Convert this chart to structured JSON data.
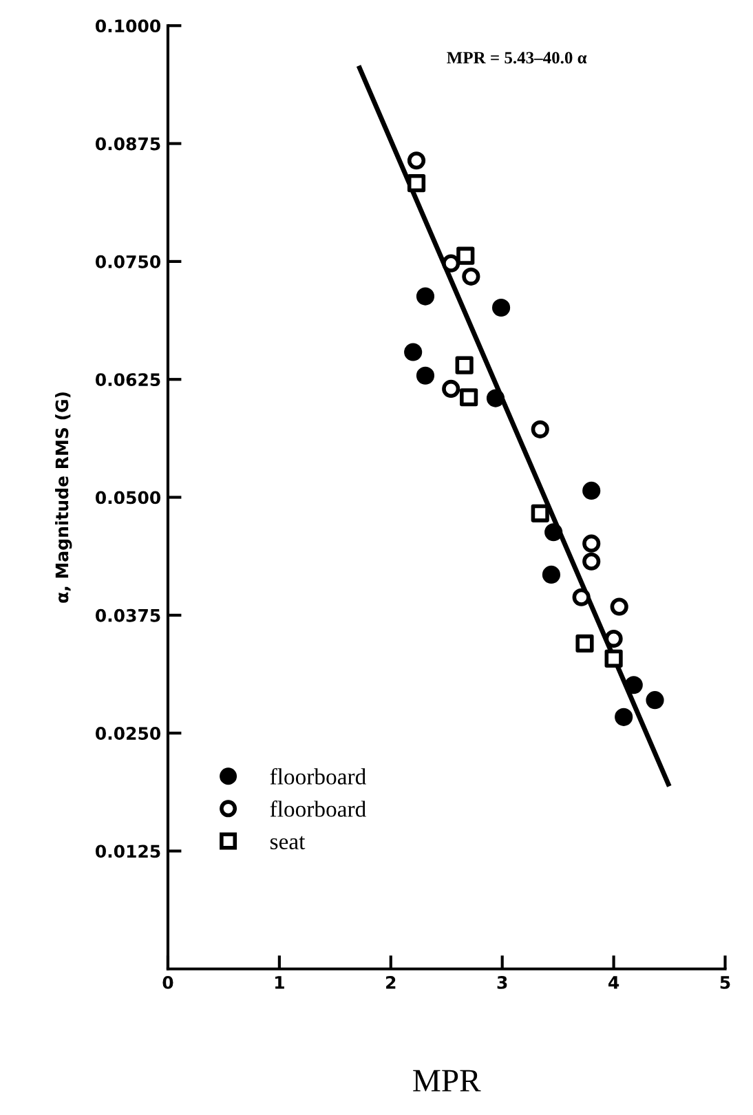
{
  "chart_data": {
    "type": "scatter",
    "xlabel": "MPR",
    "ylabel": "α, Magnitude RMS (G)",
    "annotations": [
      "MPR = 5.43–40.0 α"
    ],
    "xlim": [
      0,
      5
    ],
    "xticks": [
      0,
      1,
      2,
      3,
      4,
      5
    ],
    "ylim": [
      0,
      0.1
    ],
    "yticks": [
      {
        "value": 0.0125,
        "label": "0.0125"
      },
      {
        "value": 0.025,
        "label": "0.0250"
      },
      {
        "value": 0.0375,
        "label": "0.0375"
      },
      {
        "value": 0.05,
        "label": "0.0500"
      },
      {
        "value": 0.0625,
        "label": "0.0625"
      },
      {
        "value": 0.075,
        "label": "0.0750"
      },
      {
        "value": 0.0875,
        "label": "0.0875"
      },
      {
        "value": 0.1,
        "label": "0.1000"
      }
    ],
    "grid": false,
    "legend": "bottom left",
    "series": [
      {
        "type": "line",
        "color": "#000000",
        "x": [
          1.72,
          4.49
        ],
        "values": [
          0.0955,
          0.0196
        ],
        "marker": "none",
        "line_style": "solid"
      },
      {
        "name": "floorboard",
        "color": "#000000",
        "marker": "circle",
        "x": [
          2.2,
          2.31,
          2.31,
          2.99,
          2.94,
          3.8,
          3.46,
          3.44,
          4.18,
          4.37,
          4.09
        ],
        "values": [
          0.0654,
          0.0713,
          0.0629,
          0.0701,
          0.0605,
          0.0507,
          0.0463,
          0.0418,
          0.0301,
          0.0285,
          0.0267
        ]
      },
      {
        "name": "floorboard",
        "color": "#ffffff",
        "marker": "circle",
        "x": [
          2.23,
          2.54,
          2.72,
          2.54,
          3.34,
          3.8,
          3.8,
          3.71,
          4.05,
          4.0
        ],
        "values": [
          0.0857,
          0.0748,
          0.0734,
          0.0615,
          0.0572,
          0.0451,
          0.0432,
          0.0394,
          0.0384,
          0.035
        ]
      },
      {
        "name": "seat",
        "color": "#ffffff",
        "marker": "square",
        "x": [
          2.23,
          2.67,
          2.66,
          2.7,
          3.34,
          3.74,
          4.0
        ],
        "values": [
          0.0833,
          0.0756,
          0.064,
          0.0606,
          0.0483,
          0.0345,
          0.0329
        ]
      }
    ]
  }
}
